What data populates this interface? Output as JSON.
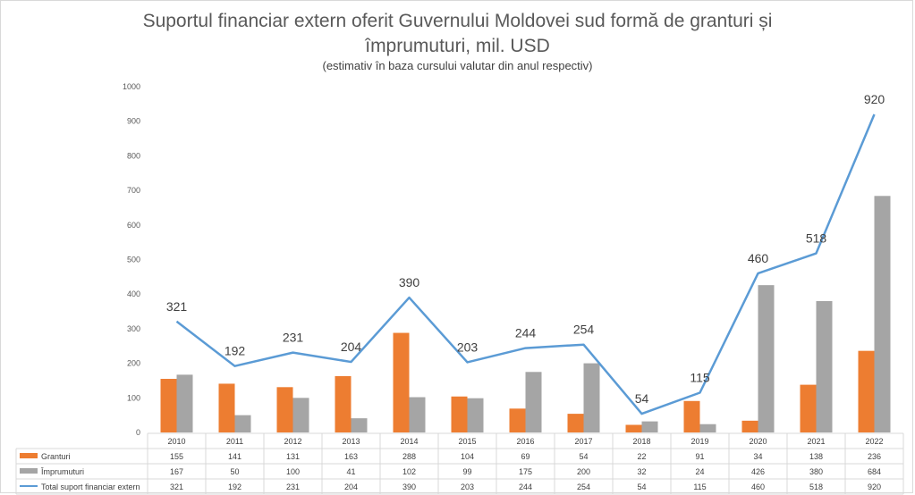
{
  "chart_data": {
    "type": "bar",
    "title": "Suportul financiar extern oferit Guvernului Moldovei sud formă de granturi și împrumuturi, mil. USD",
    "title_lines": [
      "Suportul financiar extern oferit Guvernului Moldovei sud formă de granturi și",
      "împrumuturi, mil. USD"
    ],
    "subtitle": "(estimativ în baza cursului valutar din anul respectiv)",
    "categories": [
      "2010",
      "2011",
      "2012",
      "2013",
      "2014",
      "2015",
      "2016",
      "2017",
      "2018",
      "2019",
      "2020",
      "2021",
      "2022"
    ],
    "ylim": [
      0,
      1000
    ],
    "yticks": [
      0,
      100,
      200,
      300,
      400,
      500,
      600,
      700,
      800,
      900,
      1000
    ],
    "grid": false,
    "legend_placement": "data table",
    "series": [
      {
        "name": "Granturi",
        "kind": "bar",
        "color": "#ED7D31",
        "values": [
          155,
          141,
          131,
          163,
          288,
          104,
          69,
          54,
          22,
          91,
          34,
          138,
          236
        ]
      },
      {
        "name": "Împrumuturi",
        "kind": "bar",
        "color": "#A5A5A5",
        "values": [
          167,
          50,
          100,
          41,
          102,
          99,
          175,
          200,
          32,
          24,
          426,
          380,
          684
        ]
      },
      {
        "name": "Total suport financiar extern",
        "kind": "line",
        "color": "#5B9BD5",
        "values": [
          321,
          192,
          231,
          204,
          390,
          203,
          244,
          254,
          54,
          115,
          460,
          518,
          920
        ],
        "data_labels": true
      }
    ]
  }
}
